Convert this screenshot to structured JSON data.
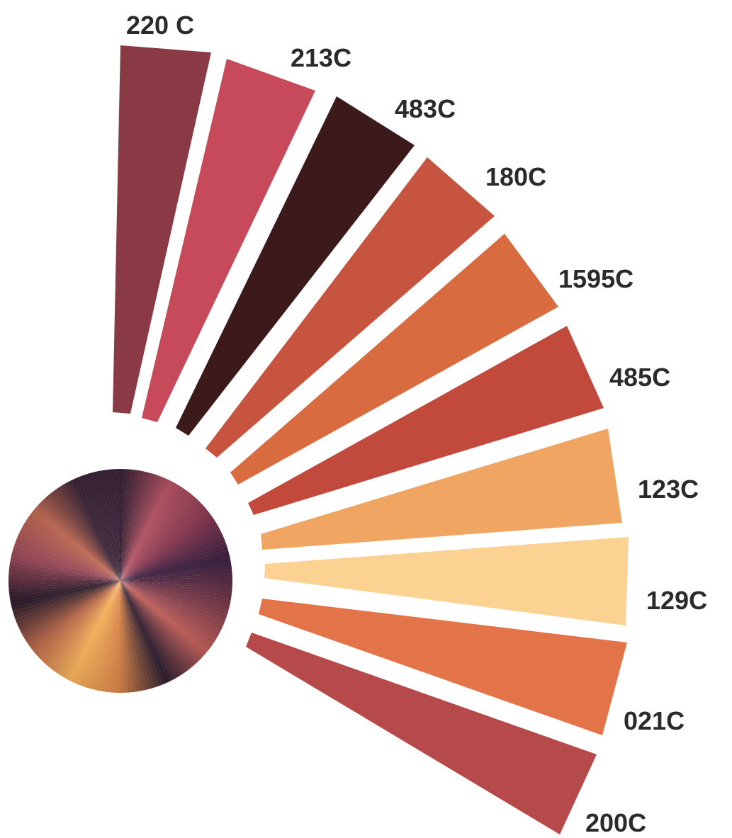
{
  "swatches": [
    {
      "label": "220 C",
      "color": "#8a3a44"
    },
    {
      "label": "213C",
      "color": "#c64a5a"
    },
    {
      "label": "483C",
      "color": "#3c1a1c"
    },
    {
      "label": "180C",
      "color": "#c7543e"
    },
    {
      "label": "1595C",
      "color": "#d96b40"
    },
    {
      "label": "485C",
      "color": "#c24a3c"
    },
    {
      "label": "123C",
      "color": "#f0a562"
    },
    {
      "label": "129C",
      "color": "#fcd292"
    },
    {
      "label": "021C",
      "color": "#e3744a"
    },
    {
      "label": "200C",
      "color": "#b64a4a"
    }
  ]
}
